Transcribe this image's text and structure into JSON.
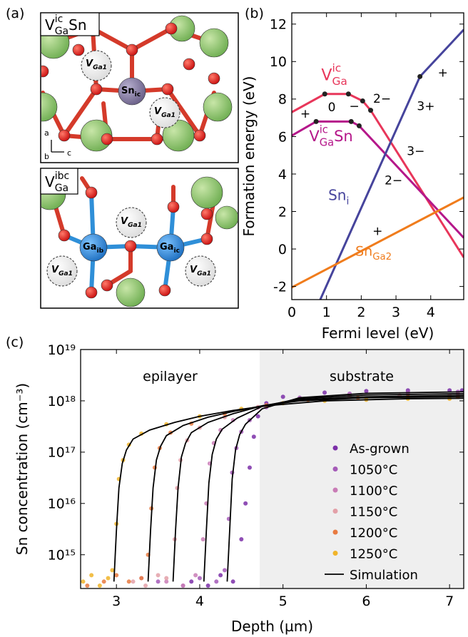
{
  "structure": {
    "panel_label": "(a)",
    "top": {
      "title": {
        "main": "V",
        "sub": "Ga",
        "sup": "ic",
        "suffix": "Sn"
      },
      "center": {
        "main": "Sn",
        "sub": "ic"
      },
      "vacancies": [
        {
          "main": "V",
          "sub": "Ga1"
        },
        {
          "main": "V",
          "sub": "Ga1"
        }
      ],
      "axes": [
        "a",
        "b",
        "c"
      ]
    },
    "bottom": {
      "title": {
        "main": "V",
        "sub": "Ga",
        "sup": "ibc"
      },
      "atoms": [
        {
          "main": "Ga",
          "sub": "ib"
        },
        {
          "main": "Ga",
          "sub": "ic"
        }
      ],
      "vacancies": [
        {
          "main": "V",
          "sub": "Ga1"
        },
        {
          "main": "V",
          "sub": "Ga1"
        },
        {
          "main": "V",
          "sub": "Ga1"
        }
      ]
    }
  },
  "chart_data": [
    {
      "type": "line",
      "panel_label": "(b)",
      "xlabel": "Fermi level (eV)",
      "ylabel": "Formation energy (eV)",
      "xlim": [
        0,
        4.95
      ],
      "ylim": [
        -2.7,
        12.6
      ],
      "xticks": [
        0,
        1,
        2,
        3,
        4
      ],
      "yticks": [
        -2,
        0,
        2,
        4,
        6,
        8,
        10,
        12
      ],
      "series": [
        {
          "label": {
            "main": "V",
            "sub": "Ga",
            "sup": "ic"
          },
          "color": "#e8365a",
          "x": [
            0,
            0.95,
            1.63,
            2.04,
            2.27,
            4.95
          ],
          "values": [
            7.3,
            8.27,
            8.27,
            7.9,
            7.4,
            -0.45
          ]
        },
        {
          "label": {
            "main": "V",
            "sub": "Ga",
            "sup": "ic",
            "suffix": "Sn"
          },
          "color": "#b5178a",
          "x": [
            0,
            0.7,
            1.71,
            1.94,
            4.95
          ],
          "values": [
            6.05,
            6.8,
            6.8,
            6.57,
            0.6
          ]
        },
        {
          "label": {
            "main": "Sn",
            "sub": "i"
          },
          "color": "#46449c",
          "x": [
            0.82,
            3.69,
            4.95
          ],
          "values": [
            -2.7,
            9.2,
            11.7
          ]
        },
        {
          "label": {
            "main": "Sn",
            "sub": "Ga2"
          },
          "color": "#f07c1c",
          "x": [
            0,
            4.95
          ],
          "values": [
            -2.05,
            2.75
          ]
        }
      ],
      "charge_labels": [
        "+",
        "0",
        "−",
        "2−",
        "3−",
        "2−",
        "+",
        "3+",
        "+"
      ]
    },
    {
      "type": "scatter",
      "panel_label": "(c)",
      "xlabel": "Depth (µm)",
      "ylabel": "Sn concentration (cm⁻³)",
      "log_y": true,
      "xlim": [
        2.57,
        7.17
      ],
      "ylim": [
        220000000000000.0,
        1e+19
      ],
      "xticks": [
        3,
        4,
        5,
        6,
        7
      ],
      "yticks": [
        {
          "value": 1000000000000000.0,
          "label": "10¹⁵"
        },
        {
          "value": 1e+16,
          "label": "10¹⁶"
        },
        {
          "value": 1e+17,
          "label": "10¹⁷"
        },
        {
          "value": 1e+18,
          "label": "10¹⁸"
        },
        {
          "value": 1e+19,
          "label": "10¹⁹"
        }
      ],
      "region_labels": [
        "epilayer",
        "substrate"
      ],
      "shaded": [
        4.72,
        7.17
      ],
      "shade_color": "#efefef",
      "legend": "lower right",
      "series": [
        {
          "name": "As-grown",
          "color": "#7b2fa8",
          "x": [
            3.9,
            4.1,
            4.25,
            4.4,
            4.5,
            4.55,
            4.6,
            4.65,
            4.7,
            4.8,
            5.0,
            5.5,
            6.0,
            6.5,
            7.0,
            7.15
          ],
          "values": [
            300000000000000.0,
            250000000000000.0,
            400000000000000.0,
            300000000000000.0,
            2000000000000000.0,
            1e+16,
            5e+16,
            2e+17,
            5e+17,
            9e+17,
            1.2e+18,
            1.45e+18,
            1.55e+18,
            1.6e+18,
            1.6e+18,
            1.6e+18
          ]
        },
        {
          "name": "1050°C",
          "color": "#a55bb8",
          "x": [
            3.5,
            3.8,
            4.0,
            4.2,
            4.3,
            4.35,
            4.39,
            4.44,
            4.5,
            4.6,
            4.8,
            5.2,
            5.8,
            6.5,
            7.1
          ],
          "values": [
            300000000000000.0,
            250000000000000.0,
            350000000000000.0,
            300000000000000.0,
            500000000000000.0,
            5000000000000000.0,
            4e+16,
            1.2e+17,
            2.5e+17,
            4.2e+17,
            7.5e+17,
            1.15e+18,
            1.38e+18,
            1.48e+18,
            1.5e+18
          ]
        },
        {
          "name": "1100°C",
          "color": "#c97cb6",
          "x": [
            3.3,
            3.6,
            3.8,
            3.95,
            4.04,
            4.08,
            4.12,
            4.17,
            4.25,
            4.4,
            4.7,
            5.2,
            5.8,
            6.5,
            7.1
          ],
          "values": [
            350000000000000.0,
            300000000000000.0,
            250000000000000.0,
            400000000000000.0,
            2000000000000000.0,
            1e+16,
            6e+16,
            1.5e+17,
            2.7e+17,
            4.2e+17,
            7.4e+17,
            1.1e+18,
            1.3e+18,
            1.37e+18,
            1.38e+18
          ]
        },
        {
          "name": "1150°C",
          "color": "#e3a0a8",
          "x": [
            3.2,
            3.35,
            3.5,
            3.6,
            3.7,
            3.73,
            3.77,
            3.85,
            4.0,
            4.3,
            4.7,
            5.2,
            5.8,
            6.4,
            7.0
          ],
          "values": [
            300000000000000.0,
            250000000000000.0,
            400000000000000.0,
            350000000000000.0,
            2000000000000000.0,
            2e+16,
            7e+16,
            1.7e+17,
            3e+17,
            4.8e+17,
            7.6e+17,
            1.05e+18,
            1.2e+18,
            1.27e+18,
            1.28e+18
          ]
        },
        {
          "name": "1200°C",
          "color": "#e87a40",
          "x": [
            2.65,
            2.85,
            3.0,
            3.15,
            3.3,
            3.38,
            3.42,
            3.46,
            3.52,
            3.65,
            3.9,
            4.3,
            4.8,
            5.3,
            5.9,
            6.5,
            7.1
          ],
          "values": [
            250000000000000.0,
            300000000000000.0,
            400000000000000.0,
            300000000000000.0,
            350000000000000.0,
            1000000000000000.0,
            8000000000000000.0,
            5e+16,
            1.2e+17,
            2.4e+17,
            3.6e+17,
            5.6e+17,
            8.2e+17,
            1.05e+18,
            1.15e+18,
            1.2e+18,
            1.2e+18
          ]
        },
        {
          "name": "1250°C",
          "color": "#f0b429",
          "x": [
            2.6,
            2.7,
            2.8,
            2.9,
            2.95,
            3.0,
            3.03,
            3.08,
            3.15,
            3.3,
            3.6,
            4.0,
            4.5,
            5.0,
            5.5,
            6.0,
            6.5,
            7.0
          ],
          "values": [
            300000000000000.0,
            400000000000000.0,
            250000000000000.0,
            350000000000000.0,
            500000000000000.0,
            4000000000000000.0,
            3e+16,
            7e+16,
            1.4e+17,
            2.3e+17,
            3.5e+17,
            5e+17,
            7e+17,
            9e+17,
            1e+18,
            1.05e+18,
            1.1e+18,
            1.1e+18
          ]
        }
      ],
      "simulation": {
        "name": "Simulation",
        "color": "#000000",
        "curves": [
          {
            "x": [
              2.97,
              3.0,
              3.03,
              3.07,
              3.12,
              3.2,
              3.4,
              3.7,
              4.0,
              4.4,
              4.8,
              5.5,
              6.5,
              7.17
            ],
            "values": [
              300000000000000.0,
              3000000000000000.0,
              2e+16,
              6e+16,
              1.1e+17,
              1.8e+17,
              2.7e+17,
              3.8e+17,
              5e+17,
              6.5e+17,
              8e+17,
              1e+18,
              1.1e+18,
              1.12e+18
            ]
          },
          {
            "x": [
              3.38,
              3.41,
              3.44,
              3.48,
              3.53,
              3.6,
              3.8,
              4.1,
              4.4,
              4.75,
              5.2,
              6.0,
              7.17
            ],
            "values": [
              300000000000000.0,
              3000000000000000.0,
              2e+16,
              7e+16,
              1.3e+17,
              2.1e+17,
              3.3e+17,
              4.8e+17,
              6.2e+17,
              8e+17,
              1e+18,
              1.15e+18,
              1.2e+18
            ]
          },
          {
            "x": [
              3.68,
              3.71,
              3.74,
              3.78,
              3.83,
              3.9,
              4.1,
              4.4,
              4.75,
              5.2,
              6.0,
              7.17
            ],
            "values": [
              300000000000000.0,
              3000000000000000.0,
              2e+16,
              8e+16,
              1.5e+17,
              2.4e+17,
              3.8e+17,
              5.6e+17,
              8e+17,
              1.05e+18,
              1.2e+18,
              1.28e+18
            ]
          },
          {
            "x": [
              4.05,
              4.08,
              4.11,
              4.15,
              4.2,
              4.27,
              4.45,
              4.75,
              5.2,
              6.0,
              7.17
            ],
            "values": [
              300000000000000.0,
              3000000000000000.0,
              2.5e+16,
              9e+16,
              1.8e+17,
              2.8e+17,
              4.6e+17,
              7.8e+17,
              1.1e+18,
              1.3e+18,
              1.38e+18
            ]
          },
          {
            "x": [
              4.33,
              4.36,
              4.39,
              4.43,
              4.48,
              4.55,
              4.75,
              5.2,
              6.0,
              7.17
            ],
            "values": [
              300000000000000.0,
              3000000000000000.0,
              3e+16,
              1.1e+17,
              2.2e+17,
              3.5e+17,
              7e+17,
              1.15e+18,
              1.4e+18,
              1.5e+18
            ]
          }
        ]
      }
    }
  ]
}
